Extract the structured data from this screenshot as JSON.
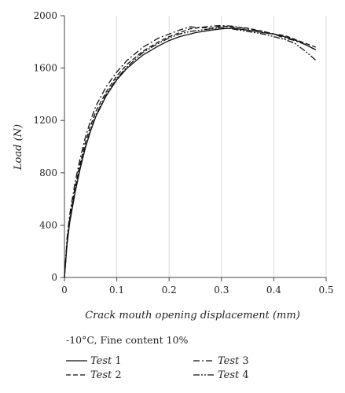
{
  "chart_data": {
    "type": "line",
    "xlabel": "Crack mouth opening displacement (mm)",
    "ylabel": "Load (N)",
    "xlim": [
      0,
      0.5
    ],
    "ylim": [
      0,
      2000
    ],
    "x_ticks": [
      "0",
      "0.1",
      "0.2",
      "0.3",
      "0.4",
      "0.5"
    ],
    "y_ticks": [
      "0",
      "400",
      "800",
      "1200",
      "1600",
      "2000"
    ],
    "grid": "vertical",
    "condition_label": "-10°C, Fine content 10%",
    "series": [
      {
        "name": "Test 1",
        "dash": "solid",
        "points": [
          [
            0,
            0
          ],
          [
            0.005,
            250
          ],
          [
            0.01,
            420
          ],
          [
            0.02,
            640
          ],
          [
            0.03,
            830
          ],
          [
            0.04,
            990
          ],
          [
            0.05,
            1120
          ],
          [
            0.06,
            1230
          ],
          [
            0.08,
            1390
          ],
          [
            0.1,
            1510
          ],
          [
            0.12,
            1600
          ],
          [
            0.15,
            1700
          ],
          [
            0.18,
            1770
          ],
          [
            0.2,
            1810
          ],
          [
            0.22,
            1840
          ],
          [
            0.25,
            1870
          ],
          [
            0.28,
            1890
          ],
          [
            0.3,
            1900
          ],
          [
            0.32,
            1905
          ],
          [
            0.35,
            1890
          ],
          [
            0.38,
            1870
          ],
          [
            0.4,
            1860
          ],
          [
            0.42,
            1840
          ],
          [
            0.45,
            1800
          ],
          [
            0.47,
            1760
          ],
          [
            0.48,
            1740
          ]
        ]
      },
      {
        "name": "Test 2",
        "dash": "dashed",
        "points": [
          [
            0,
            0
          ],
          [
            0.005,
            270
          ],
          [
            0.01,
            450
          ],
          [
            0.02,
            680
          ],
          [
            0.03,
            870
          ],
          [
            0.04,
            1030
          ],
          [
            0.05,
            1160
          ],
          [
            0.06,
            1270
          ],
          [
            0.08,
            1420
          ],
          [
            0.1,
            1540
          ],
          [
            0.12,
            1630
          ],
          [
            0.15,
            1730
          ],
          [
            0.18,
            1800
          ],
          [
            0.2,
            1840
          ],
          [
            0.22,
            1870
          ],
          [
            0.24,
            1900
          ],
          [
            0.26,
            1910
          ],
          [
            0.28,
            1905
          ],
          [
            0.3,
            1920
          ],
          [
            0.32,
            1915
          ],
          [
            0.35,
            1905
          ],
          [
            0.38,
            1880
          ],
          [
            0.4,
            1860
          ],
          [
            0.42,
            1850
          ],
          [
            0.44,
            1820
          ],
          [
            0.46,
            1790
          ],
          [
            0.48,
            1760
          ]
        ]
      },
      {
        "name": "Test 3",
        "dash": "dashdot",
        "points": [
          [
            0,
            0
          ],
          [
            0.005,
            300
          ],
          [
            0.01,
            480
          ],
          [
            0.02,
            720
          ],
          [
            0.03,
            910
          ],
          [
            0.04,
            1070
          ],
          [
            0.05,
            1200
          ],
          [
            0.06,
            1310
          ],
          [
            0.08,
            1460
          ],
          [
            0.1,
            1570
          ],
          [
            0.12,
            1660
          ],
          [
            0.15,
            1760
          ],
          [
            0.18,
            1830
          ],
          [
            0.2,
            1860
          ],
          [
            0.22,
            1890
          ],
          [
            0.24,
            1915
          ],
          [
            0.26,
            1910
          ],
          [
            0.28,
            1920
          ],
          [
            0.3,
            1925
          ],
          [
            0.32,
            1920
          ],
          [
            0.35,
            1900
          ],
          [
            0.38,
            1880
          ],
          [
            0.4,
            1860
          ],
          [
            0.42,
            1830
          ],
          [
            0.44,
            1810
          ],
          [
            0.46,
            1780
          ],
          [
            0.48,
            1740
          ]
        ]
      },
      {
        "name": "Test 4",
        "dash": "dashdotdot",
        "points": [
          [
            0,
            0
          ],
          [
            0.005,
            260
          ],
          [
            0.01,
            440
          ],
          [
            0.02,
            660
          ],
          [
            0.03,
            850
          ],
          [
            0.04,
            1000
          ],
          [
            0.05,
            1130
          ],
          [
            0.06,
            1240
          ],
          [
            0.08,
            1400
          ],
          [
            0.1,
            1520
          ],
          [
            0.12,
            1610
          ],
          [
            0.15,
            1720
          ],
          [
            0.18,
            1790
          ],
          [
            0.2,
            1830
          ],
          [
            0.22,
            1860
          ],
          [
            0.24,
            1880
          ],
          [
            0.26,
            1890
          ],
          [
            0.28,
            1900
          ],
          [
            0.3,
            1910
          ],
          [
            0.32,
            1900
          ],
          [
            0.35,
            1880
          ],
          [
            0.38,
            1860
          ],
          [
            0.4,
            1840
          ],
          [
            0.42,
            1820
          ],
          [
            0.44,
            1790
          ],
          [
            0.46,
            1730
          ],
          [
            0.48,
            1660
          ]
        ]
      }
    ]
  }
}
